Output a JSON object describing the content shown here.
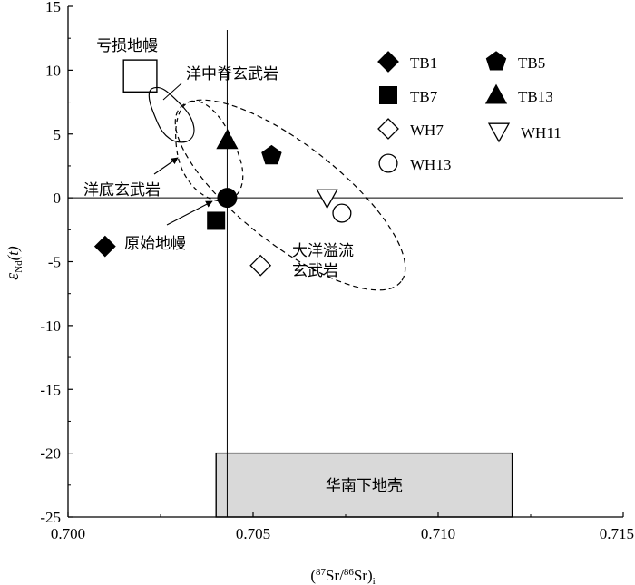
{
  "chart_data": {
    "type": "scatter",
    "xlabel": "(87Sr/86Sr)i",
    "xlabel_parts": {
      "open": "(",
      "sup1": "87",
      "mid1": "Sr/",
      "sup2": "86",
      "mid2": "Sr)",
      "sub": "i"
    },
    "ylabel": "εNd(t)",
    "ylabel_parts": {
      "main": "ε",
      "sub": "Nd",
      "tail": "(t)"
    },
    "xlim": [
      0.7,
      0.715
    ],
    "ylim": [
      -25,
      15
    ],
    "x_ticks": [
      0.7,
      0.705,
      0.71,
      0.715
    ],
    "x_tick_labels": [
      "0.700",
      "0.705",
      "0.710",
      "0.715"
    ],
    "y_ticks": [
      15,
      10,
      5,
      0,
      -5,
      -10,
      -15,
      -20,
      -25
    ],
    "y_tick_labels": [
      "15",
      "10",
      "5",
      "0",
      "-5",
      "-10",
      "-15",
      "-20",
      "-25"
    ],
    "reference_lines": {
      "horizontal_y": 0,
      "vertical_x": 0.7043
    },
    "series": [
      {
        "name": "TB1",
        "marker": "diamond-filled",
        "points": [
          [
            0.701,
            -3.8
          ]
        ]
      },
      {
        "name": "TB5",
        "marker": "pentagon-filled",
        "points": [
          [
            0.7055,
            3.3
          ]
        ]
      },
      {
        "name": "TB7",
        "marker": "square-filled",
        "points": [
          [
            0.704,
            -1.8
          ]
        ]
      },
      {
        "name": "TB13",
        "marker": "triangle-up-filled",
        "points": [
          [
            0.7043,
            4.5
          ]
        ]
      },
      {
        "name": "WH7",
        "marker": "diamond-open",
        "points": [
          [
            0.7052,
            -5.3
          ]
        ]
      },
      {
        "name": "WH11",
        "marker": "triangle-down-open",
        "points": [
          [
            0.707,
            0.0
          ]
        ]
      },
      {
        "name": "WH13",
        "marker": "circle-open",
        "points": [
          [
            0.7074,
            -1.2
          ]
        ]
      }
    ],
    "primitive_mantle_point": [
      0.7043,
      0.0
    ],
    "fields": [
      {
        "label": "亏损地幔",
        "kind": "box",
        "x_range": [
          0.7015,
          0.7024
        ],
        "y_range": [
          8.3,
          10.8
        ]
      },
      {
        "label": "华南下地壳",
        "kind": "box",
        "x_range": [
          0.704,
          0.712
        ],
        "y_range": [
          -25,
          -20
        ]
      }
    ],
    "annotations": {
      "morb": "洋中脊玄武岩",
      "oib": "洋底玄武岩",
      "primitive_mantle": "原始地幔",
      "flood_basalt_line1": "大洋溢流",
      "flood_basalt_line2": "玄武岩"
    },
    "legend": {
      "position": "top-right"
    },
    "grid": false
  }
}
